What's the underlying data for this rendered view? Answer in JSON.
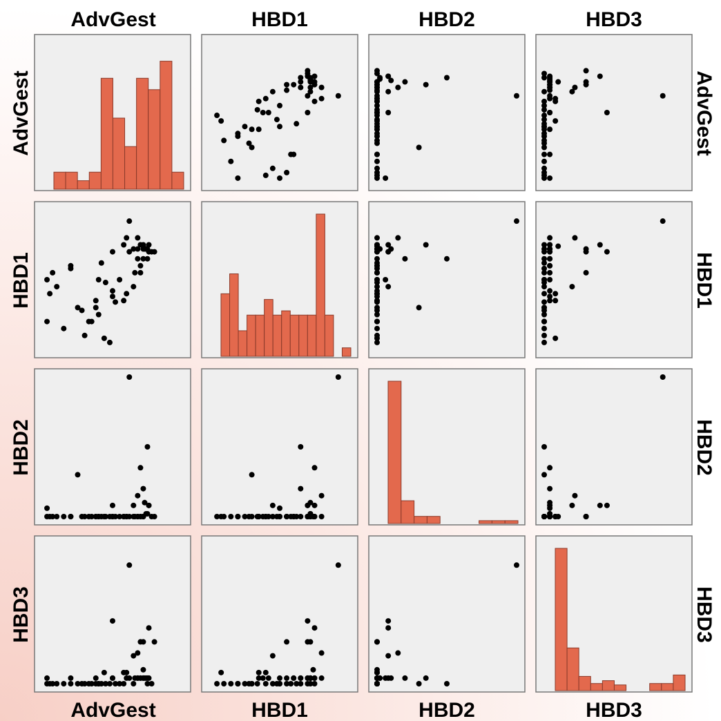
{
  "chart_data": {
    "type": "scatter-matrix",
    "variables": [
      "AdvGest",
      "HBD1",
      "HBD2",
      "HBD3"
    ],
    "hist_style": {
      "bar_color": "#e3694d",
      "edge_color": "#8a3a2a",
      "panel_bg": "#efefef"
    },
    "scale": {
      "min": 0,
      "max": 100
    },
    "histograms": [
      [
        0.12,
        0.12,
        0.06,
        0.12,
        0.78,
        0.5,
        0.3,
        0.78,
        0.7,
        0.9,
        0.12
      ],
      [
        0.44,
        0.58,
        0.18,
        0.29,
        0.29,
        0.4,
        0.29,
        0.32,
        0.29,
        0.29,
        0.29,
        1.0,
        0.29,
        0.0,
        0.06
      ],
      [
        1.0,
        0.16,
        0.05,
        0.05,
        0.0,
        0.0,
        0.0,
        0.02,
        0.02,
        0.02
      ],
      [
        1.0,
        0.3,
        0.1,
        0.05,
        0.07,
        0.04,
        0.0,
        0.0,
        0.05,
        0.05,
        0.11
      ]
    ],
    "observations": {
      "AdvGest": [
        5,
        10,
        3,
        3,
        7,
        20,
        20,
        25,
        28,
        33,
        15,
        30,
        38,
        40,
        45,
        42,
        50,
        58,
        60,
        62,
        68,
        70,
        70,
        72,
        65,
        65,
        66,
        72,
        72,
        73,
        70,
        75,
        76,
        78,
        80,
        50,
        50,
        52,
        40,
        35,
        38,
        55,
        60,
        58,
        68,
        72,
        74,
        75,
        76,
        68,
        62,
        48,
        44
      ],
      "HBD1": [
        40,
        45,
        50,
        20,
        55,
        58,
        60,
        30,
        28,
        20,
        15,
        10,
        35,
        50,
        48,
        62,
        70,
        75,
        80,
        70,
        65,
        55,
        60,
        65,
        45,
        72,
        55,
        75,
        72,
        72,
        75,
        65,
        70,
        70,
        70,
        42,
        38,
        34,
        25,
        20,
        30,
        50,
        40,
        35,
        72,
        74,
        72,
        72,
        75,
        80,
        92,
        5,
        8
      ],
      "HBD2": [
        0,
        0,
        6,
        0,
        0,
        0,
        0,
        30,
        0,
        0,
        0,
        0,
        0,
        0,
        0,
        0,
        8,
        0,
        0,
        0,
        0,
        0,
        0,
        20,
        8,
        0,
        0,
        0,
        0,
        10,
        35,
        50,
        8,
        0,
        0,
        0,
        0,
        0,
        0,
        0,
        0,
        0,
        0,
        0,
        0,
        0,
        2,
        2,
        8,
        15,
        100,
        0,
        0
      ],
      "HBD3": [
        0,
        0,
        4,
        0,
        0,
        0,
        4,
        0,
        0,
        0,
        0,
        0,
        4,
        0,
        0,
        0,
        45,
        0,
        4,
        4,
        4,
        30,
        4,
        4,
        20,
        0,
        4,
        4,
        30,
        4,
        4,
        0,
        4,
        0,
        30,
        4,
        4,
        0,
        0,
        0,
        0,
        0,
        8,
        8,
        4,
        10,
        4,
        4,
        40,
        22,
        85,
        0,
        8
      ]
    }
  }
}
